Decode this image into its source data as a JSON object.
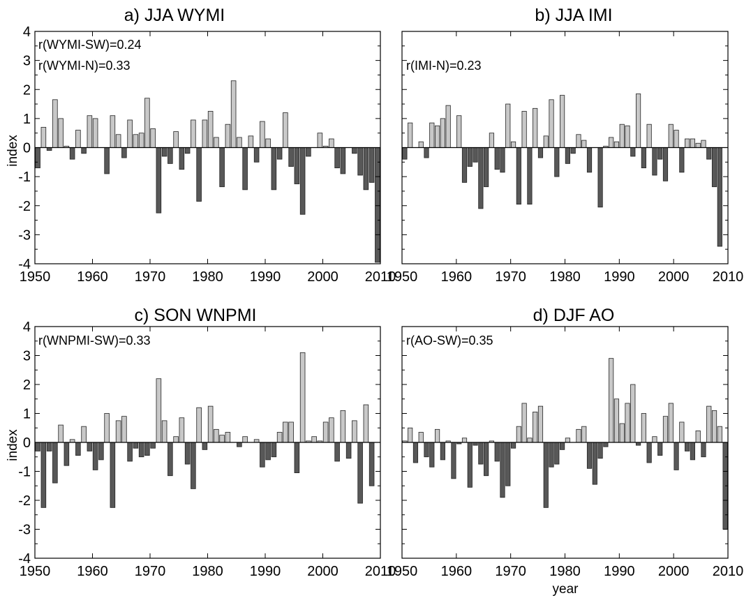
{
  "figure": {
    "ylabel": "index",
    "xlabel": "year"
  },
  "chart_data": [
    {
      "type": "bar",
      "title": "a) JJA WYMI",
      "annotations": [
        "r(WYMI-SW)=0.24",
        "r(WYMI-N)=0.33"
      ],
      "xlabel": "",
      "ylabel": "index",
      "xlim": [
        1950,
        2010
      ],
      "ylim": [
        -4,
        4
      ],
      "xticks": [
        1950,
        1960,
        1970,
        1980,
        1990,
        2000,
        2010
      ],
      "yticks": [
        4,
        3,
        2,
        1,
        0,
        -1,
        -2,
        -3,
        -4
      ],
      "positive_color": "#c8c8c8",
      "negative_color": "#585858",
      "x": [
        1951,
        1952,
        1953,
        1954,
        1955,
        1956,
        1957,
        1958,
        1959,
        1960,
        1961,
        1962,
        1963,
        1964,
        1965,
        1966,
        1967,
        1968,
        1969,
        1970,
        1971,
        1972,
        1973,
        1974,
        1975,
        1976,
        1977,
        1978,
        1979,
        1980,
        1981,
        1982,
        1983,
        1984,
        1985,
        1986,
        1987,
        1988,
        1989,
        1990,
        1991,
        1992,
        1993,
        1994,
        1995,
        1996,
        1997,
        1998,
        1999,
        2000,
        2001,
        2002,
        2003,
        2004,
        2005,
        2006,
        2007,
        2008,
        2009,
        2010
      ],
      "values": [
        -0.7,
        0.7,
        -0.1,
        1.65,
        1.0,
        0.05,
        -0.4,
        0.6,
        -0.2,
        1.1,
        1.0,
        0.0,
        -0.9,
        1.1,
        0.45,
        -0.35,
        0.95,
        0.45,
        0.5,
        1.7,
        0.65,
        -2.25,
        -0.3,
        -0.55,
        0.55,
        -0.75,
        -0.2,
        0.95,
        -1.85,
        0.95,
        1.25,
        0.35,
        -1.35,
        0.8,
        2.3,
        0.35,
        -1.45,
        0.4,
        -0.5,
        0.9,
        0.3,
        -1.45,
        -0.4,
        1.2,
        -0.65,
        -1.25,
        -2.3,
        -0.3,
        0.0,
        0.5,
        0.05,
        0.3,
        -0.7,
        -0.9,
        0.0,
        -0.2,
        -0.95,
        -1.45,
        -1.2,
        -3.95
      ]
    },
    {
      "type": "bar",
      "title": "b) JJA IMI",
      "annotations": [
        "r(IMI-N)=0.23"
      ],
      "xlabel": "",
      "ylabel": "",
      "xlim": [
        1950,
        2010
      ],
      "ylim": [
        -4,
        4
      ],
      "xticks": [
        1950,
        1960,
        1970,
        1980,
        1990,
        2000,
        2010
      ],
      "yticks": [],
      "positive_color": "#c8c8c8",
      "negative_color": "#585858",
      "x": [
        1951,
        1952,
        1953,
        1954,
        1955,
        1956,
        1957,
        1958,
        1959,
        1960,
        1961,
        1962,
        1963,
        1964,
        1965,
        1966,
        1967,
        1968,
        1969,
        1970,
        1971,
        1972,
        1973,
        1974,
        1975,
        1976,
        1977,
        1978,
        1979,
        1980,
        1981,
        1982,
        1983,
        1984,
        1985,
        1986,
        1987,
        1988,
        1989,
        1990,
        1991,
        1992,
        1993,
        1994,
        1995,
        1996,
        1997,
        1998,
        1999,
        2000,
        2001,
        2002,
        2003,
        2004,
        2005,
        2006,
        2007,
        2008,
        2009,
        2010
      ],
      "values": [
        -0.4,
        0.85,
        0.0,
        0.2,
        -0.35,
        0.85,
        0.75,
        1.0,
        1.45,
        0.0,
        1.1,
        -1.2,
        -0.65,
        -0.5,
        -2.1,
        -1.35,
        0.5,
        -0.75,
        -0.85,
        1.5,
        0.2,
        -1.95,
        1.25,
        -1.95,
        1.35,
        -0.35,
        0.4,
        1.65,
        -1.0,
        1.8,
        -0.55,
        -0.2,
        0.45,
        0.25,
        -0.85,
        0.0,
        -2.05,
        0.05,
        0.35,
        0.2,
        0.8,
        0.75,
        -0.3,
        1.85,
        -0.7,
        0.8,
        -0.95,
        -0.4,
        -1.15,
        0.8,
        0.6,
        -0.85,
        0.3,
        0.3,
        0.15,
        0.25,
        -0.4,
        -1.35,
        -3.4,
        0.0
      ]
    },
    {
      "type": "bar",
      "title": "c) SON WNPMI",
      "annotations": [
        "r(WNPMI-SW)=0.33"
      ],
      "xlabel": "",
      "ylabel": "index",
      "xlim": [
        1950,
        2010
      ],
      "ylim": [
        -4,
        4
      ],
      "xticks": [
        1950,
        1960,
        1970,
        1980,
        1990,
        2000,
        2010
      ],
      "yticks": [
        4,
        3,
        2,
        1,
        0,
        -1,
        -2,
        -3,
        -4
      ],
      "positive_color": "#c8c8c8",
      "negative_color": "#585858",
      "x": [
        1951,
        1952,
        1953,
        1954,
        1955,
        1956,
        1957,
        1958,
        1959,
        1960,
        1961,
        1962,
        1963,
        1964,
        1965,
        1966,
        1967,
        1968,
        1969,
        1970,
        1971,
        1972,
        1973,
        1974,
        1975,
        1976,
        1977,
        1978,
        1979,
        1980,
        1981,
        1982,
        1983,
        1984,
        1985,
        1986,
        1987,
        1988,
        1989,
        1990,
        1991,
        1992,
        1993,
        1994,
        1995,
        1996,
        1997,
        1998,
        1999,
        2000,
        2001,
        2002,
        2003,
        2004,
        2005,
        2006,
        2007,
        2008,
        2009,
        2010
      ],
      "values": [
        -0.3,
        -2.25,
        -0.3,
        -1.4,
        0.6,
        -0.8,
        0.1,
        -0.45,
        0.55,
        -0.3,
        -0.95,
        -0.6,
        1.0,
        -2.25,
        0.75,
        0.9,
        -0.65,
        -0.2,
        -0.5,
        -0.45,
        -0.2,
        2.2,
        0.75,
        -1.15,
        0.2,
        0.85,
        -0.75,
        -1.6,
        1.2,
        -0.25,
        1.25,
        0.45,
        0.25,
        0.35,
        0.0,
        -0.15,
        0.2,
        0.0,
        0.1,
        -0.85,
        -0.6,
        -0.5,
        0.35,
        0.7,
        0.7,
        -1.05,
        3.1,
        0.05,
        0.2,
        0.05,
        0.7,
        0.85,
        -0.65,
        1.1,
        -0.55,
        0.75,
        -2.1,
        1.3,
        -1.5,
        0.0
      ]
    },
    {
      "type": "bar",
      "title": "d) DJF AO",
      "annotations": [
        "r(AO-SW)=0.35"
      ],
      "xlabel": "year",
      "ylabel": "",
      "xlim": [
        1950,
        2010
      ],
      "ylim": [
        -4,
        4
      ],
      "xticks": [
        1950,
        1960,
        1970,
        1980,
        1990,
        2000,
        2010
      ],
      "yticks": [],
      "positive_color": "#c8c8c8",
      "negative_color": "#585858",
      "x": [
        1951,
        1952,
        1953,
        1954,
        1955,
        1956,
        1957,
        1958,
        1959,
        1960,
        1961,
        1962,
        1963,
        1964,
        1965,
        1966,
        1967,
        1968,
        1969,
        1970,
        1971,
        1972,
        1973,
        1974,
        1975,
        1976,
        1977,
        1978,
        1979,
        1980,
        1981,
        1982,
        1983,
        1984,
        1985,
        1986,
        1987,
        1988,
        1989,
        1990,
        1991,
        1992,
        1993,
        1994,
        1995,
        1996,
        1997,
        1998,
        1999,
        2000,
        2001,
        2002,
        2003,
        2004,
        2005,
        2006,
        2007,
        2008,
        2009,
        2010
      ],
      "values": [
        0.05,
        0.5,
        -0.7,
        0.35,
        -0.5,
        -0.85,
        0.45,
        -0.6,
        0.05,
        -1.25,
        -0.05,
        0.15,
        -1.55,
        -0.1,
        -0.75,
        -1.15,
        0.05,
        -0.65,
        -1.9,
        -1.5,
        -0.2,
        0.55,
        1.35,
        0.15,
        1.05,
        1.25,
        -2.25,
        -0.85,
        -0.75,
        -0.25,
        0.15,
        0.0,
        0.45,
        0.55,
        -0.9,
        -1.45,
        -0.55,
        -0.15,
        2.9,
        1.5,
        0.65,
        1.35,
        2.0,
        -0.1,
        1.0,
        -0.7,
        0.2,
        -0.45,
        0.9,
        1.35,
        -0.95,
        0.7,
        -0.3,
        -0.6,
        0.4,
        -0.5,
        1.25,
        1.1,
        0.55,
        -3.0
      ]
    }
  ]
}
